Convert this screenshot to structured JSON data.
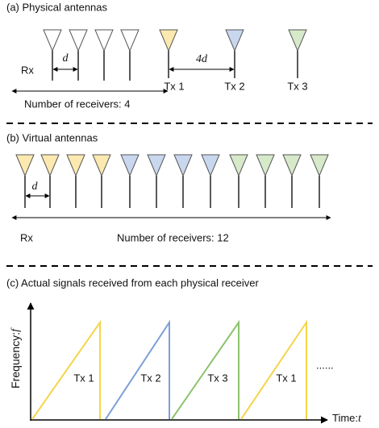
{
  "panel_a": {
    "title": "(a) Physical antennas",
    "rx_label": "Rx",
    "spacing_label": "d",
    "tx_labels": [
      "Tx 1",
      "Tx 2",
      "Tx 3"
    ],
    "tx_spacing_label": "4d",
    "receivers_note": "Number of receivers: 4"
  },
  "panel_b": {
    "title": "(b) Virtual antennas",
    "spacing_label": "d",
    "rx_label": "Rx",
    "receivers_note": "Number of receivers: 12"
  },
  "panel_c": {
    "title": "(c) Actual signals received from each physical receiver",
    "y_axis_label": "Frequency:",
    "y_axis_var": "f",
    "x_axis_label": "Time:",
    "x_axis_var": "t",
    "chirp_labels": [
      "Tx 1",
      "Tx 2",
      "Tx 3",
      "Tx 1"
    ],
    "ellipsis": "......"
  }
}
